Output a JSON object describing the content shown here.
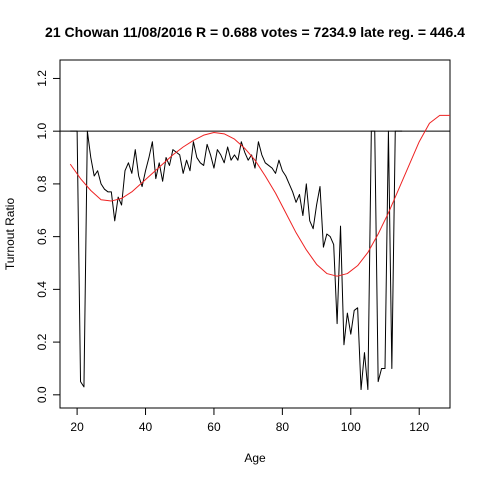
{
  "chart_data": {
    "type": "line",
    "title": "21 Chowan 11/08/2016 R = 0.688 votes = 7234.9 late reg. = 446.4",
    "xlabel": "Age",
    "ylabel": "Turnout Ratio",
    "xlim": [
      15,
      129
    ],
    "ylim": [
      -0.05,
      1.27
    ],
    "xticks": [
      20,
      40,
      60,
      80,
      100,
      120
    ],
    "yticks": [
      0.0,
      0.2,
      0.4,
      0.6,
      0.8,
      1.0,
      1.2
    ],
    "xtick_labels": [
      "20",
      "40",
      "60",
      "80",
      "100",
      "120"
    ],
    "ytick_labels": [
      "0.0",
      "0.2",
      "0.4",
      "0.6",
      "0.8",
      "1.0",
      "1.2"
    ],
    "grid": false,
    "legend": "none",
    "reference_line": {
      "y": 1.0,
      "color": "#000000"
    },
    "series": [
      {
        "color": "#000000",
        "x": [
          18,
          19,
          20,
          21,
          22,
          23,
          24,
          25,
          26,
          27,
          28,
          29,
          30,
          31,
          32,
          33,
          34,
          35,
          36,
          37,
          38,
          39,
          40,
          41,
          42,
          43,
          44,
          45,
          46,
          47,
          48,
          49,
          50,
          51,
          52,
          53,
          54,
          55,
          56,
          57,
          58,
          59,
          60,
          61,
          62,
          63,
          64,
          65,
          66,
          67,
          68,
          69,
          70,
          71,
          72,
          73,
          74,
          75,
          76,
          77,
          78,
          79,
          80,
          81,
          82,
          83,
          84,
          85,
          86,
          87,
          88,
          89,
          90,
          91,
          92,
          93,
          94,
          95,
          96,
          97,
          98,
          99,
          100,
          101,
          102,
          103,
          104,
          105,
          106,
          107,
          108,
          109,
          110,
          111,
          112,
          113,
          114,
          115
        ],
        "values": [
          1.0,
          1.0,
          1.0,
          0.05,
          0.03,
          1.0,
          0.9,
          0.83,
          0.85,
          0.8,
          0.78,
          0.77,
          0.77,
          0.66,
          0.75,
          0.72,
          0.85,
          0.88,
          0.84,
          0.93,
          0.83,
          0.79,
          0.85,
          0.9,
          0.96,
          0.82,
          0.88,
          0.81,
          0.9,
          0.87,
          0.93,
          0.92,
          0.91,
          0.84,
          0.89,
          0.85,
          0.96,
          0.9,
          0.88,
          0.87,
          0.95,
          0.91,
          0.86,
          0.93,
          0.91,
          0.88,
          0.94,
          0.89,
          0.91,
          0.89,
          0.96,
          0.92,
          0.89,
          0.91,
          0.86,
          0.96,
          0.91,
          0.88,
          0.87,
          0.86,
          0.84,
          0.89,
          0.85,
          0.83,
          0.8,
          0.77,
          0.73,
          0.76,
          0.68,
          0.8,
          0.66,
          0.63,
          0.72,
          0.79,
          0.56,
          0.61,
          0.6,
          0.57,
          0.27,
          0.64,
          0.19,
          0.31,
          0.23,
          0.32,
          0.33,
          0.02,
          0.16,
          0.02,
          1.0,
          1.0,
          0.05,
          0.1,
          0.1,
          1.0,
          0.1,
          1.0,
          1.0,
          1.0
        ]
      },
      {
        "color": "#ee2222",
        "x": [
          18,
          21,
          24,
          27,
          30,
          33,
          36,
          39,
          42,
          45,
          48,
          51,
          54,
          57,
          60,
          63,
          66,
          69,
          72,
          75,
          78,
          81,
          84,
          87,
          90,
          93,
          96,
          99,
          102,
          105,
          108,
          111,
          114,
          117,
          120,
          123,
          126,
          129
        ],
        "values": [
          0.875,
          0.82,
          0.775,
          0.74,
          0.735,
          0.745,
          0.77,
          0.805,
          0.84,
          0.875,
          0.91,
          0.94,
          0.965,
          0.985,
          0.995,
          0.99,
          0.97,
          0.935,
          0.89,
          0.83,
          0.765,
          0.69,
          0.615,
          0.55,
          0.495,
          0.46,
          0.45,
          0.46,
          0.49,
          0.54,
          0.61,
          0.69,
          0.78,
          0.87,
          0.96,
          1.03,
          1.06,
          1.06
        ]
      }
    ]
  }
}
